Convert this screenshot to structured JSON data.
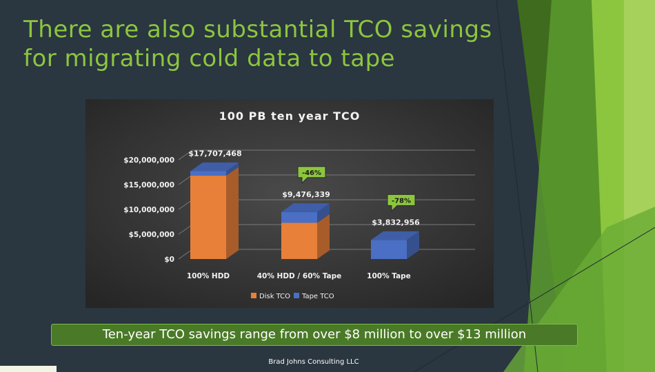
{
  "slide": {
    "title_line1": "There are also substantial TCO savings",
    "title_line2": "for migrating cold data to tape",
    "banner_text": "Ten-year TCO savings range from over $8 million to over $13 million",
    "footer_text": "Brad Johns Consulting LLC"
  },
  "chart_data": {
    "type": "bar",
    "stacked": true,
    "three_d": true,
    "title": "100 PB ten year TCO",
    "categories": [
      "100% HDD",
      "40% HDD / 60% Tape",
      "100% Tape"
    ],
    "series": [
      {
        "name": "Disk TCO",
        "color": "#e8803a",
        "values": [
          16800000,
          7300000,
          0
        ]
      },
      {
        "name": "Tape TCO",
        "color": "#4a6fc4",
        "values": [
          907468,
          2176339,
          3832956
        ]
      }
    ],
    "totals": [
      17707468,
      9476339,
      3832956
    ],
    "total_labels": [
      "$17,707,468",
      "$9,476,339",
      "$3,832,956"
    ],
    "yticks": [
      "$0",
      "$5,000,000",
      "$10,000,000",
      "$15,000,000",
      "$20,000,000"
    ],
    "ytick_values": [
      0,
      5000000,
      10000000,
      15000000,
      20000000
    ],
    "ylim": [
      0,
      20000000
    ],
    "annotations": [
      {
        "text": "-46%",
        "category": 1
      },
      {
        "text": "-78%",
        "category": 2
      }
    ],
    "legend_position": "bottom",
    "grid": true,
    "background": "#3a3a3a"
  }
}
